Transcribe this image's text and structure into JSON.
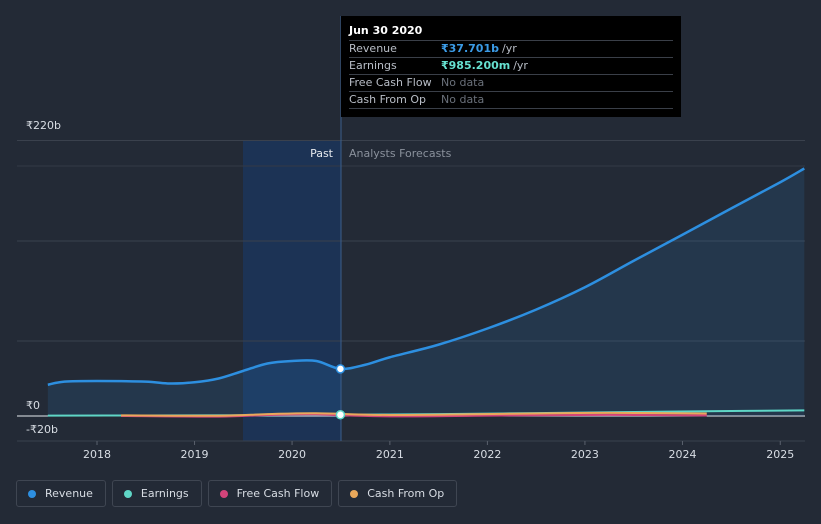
{
  "chart_data": {
    "type": "line",
    "x_axis": {
      "ticks": [
        "2018",
        "2019",
        "2020",
        "2021",
        "2022",
        "2023",
        "2024",
        "2025"
      ]
    },
    "y_axis": {
      "ticks": [
        "₹220b",
        "₹0",
        "-₹20b"
      ],
      "range_b": [
        -20,
        220
      ]
    },
    "regions": {
      "past_label": "Past",
      "forecast_label": "Analysts Forecasts",
      "split_date": "2020-06-30"
    },
    "series": [
      {
        "name": "Revenue",
        "color": "#2d8fe0",
        "points": [
          [
            "2017-07-01",
            25
          ],
          [
            "2017-09-01",
            27.5
          ],
          [
            "2018-01-01",
            28
          ],
          [
            "2018-07-01",
            27.5
          ],
          [
            "2018-10-01",
            26
          ],
          [
            "2019-01-01",
            27
          ],
          [
            "2019-04-01",
            30
          ],
          [
            "2019-07-01",
            36
          ],
          [
            "2019-10-01",
            42
          ],
          [
            "2020-01-01",
            44
          ],
          [
            "2020-04-01",
            44
          ],
          [
            "2020-06-30",
            37.7
          ],
          [
            "2020-10-01",
            41
          ],
          [
            "2021-01-01",
            47
          ],
          [
            "2021-07-01",
            57
          ],
          [
            "2022-01-01",
            70
          ],
          [
            "2022-07-01",
            85
          ],
          [
            "2023-01-01",
            103
          ],
          [
            "2023-07-01",
            124
          ],
          [
            "2024-01-01",
            145
          ],
          [
            "2024-07-01",
            166
          ],
          [
            "2025-01-01",
            187
          ],
          [
            "2025-04-01",
            198
          ]
        ]
      },
      {
        "name": "Earnings",
        "color": "#5fd6c6",
        "points": [
          [
            "2017-07-01",
            0.3
          ],
          [
            "2018-07-01",
            0.4
          ],
          [
            "2019-07-01",
            0.6
          ],
          [
            "2020-06-30",
            0.985
          ],
          [
            "2021-07-01",
            1.5
          ],
          [
            "2022-07-01",
            2.3
          ],
          [
            "2023-07-01",
            3.2
          ],
          [
            "2024-07-01",
            4.0
          ],
          [
            "2025-04-01",
            4.5
          ]
        ]
      },
      {
        "name": "Free Cash Flow",
        "color": "#d2447a",
        "points": [
          [
            "2018-04-01",
            0
          ],
          [
            "2019-04-01",
            -0.5
          ],
          [
            "2019-10-01",
            0.8
          ],
          [
            "2020-04-01",
            1.2
          ],
          [
            "2021-01-01",
            -0.3
          ],
          [
            "2022-04-01",
            0.5
          ],
          [
            "2023-04-01",
            0.9
          ],
          [
            "2024-04-01",
            0.4
          ]
        ]
      },
      {
        "name": "Cash From Op",
        "color": "#e9a85b",
        "points": [
          [
            "2018-04-01",
            0.5
          ],
          [
            "2019-04-01",
            0.2
          ],
          [
            "2019-10-01",
            1.5
          ],
          [
            "2020-04-01",
            2.2
          ],
          [
            "2021-01-01",
            0.8
          ],
          [
            "2022-04-01",
            1.8
          ],
          [
            "2023-04-01",
            2.5
          ],
          [
            "2024-04-01",
            2.0
          ]
        ]
      }
    ]
  },
  "tooltip": {
    "date": "Jun 30 2020",
    "rows": [
      {
        "label": "Revenue",
        "value": "₹37.701b",
        "unit": "/yr"
      },
      {
        "label": "Earnings",
        "value": "₹985.200m",
        "unit": "/yr"
      },
      {
        "label": "Free Cash Flow",
        "value": "No data"
      },
      {
        "label": "Cash From Op",
        "value": "No data"
      }
    ]
  },
  "legend": [
    {
      "label": "Revenue",
      "color": "#2d8fe0"
    },
    {
      "label": "Earnings",
      "color": "#5fd6c6"
    },
    {
      "label": "Free Cash Flow",
      "color": "#d2447a"
    },
    {
      "label": "Cash From Op",
      "color": "#e9a85b"
    }
  ]
}
